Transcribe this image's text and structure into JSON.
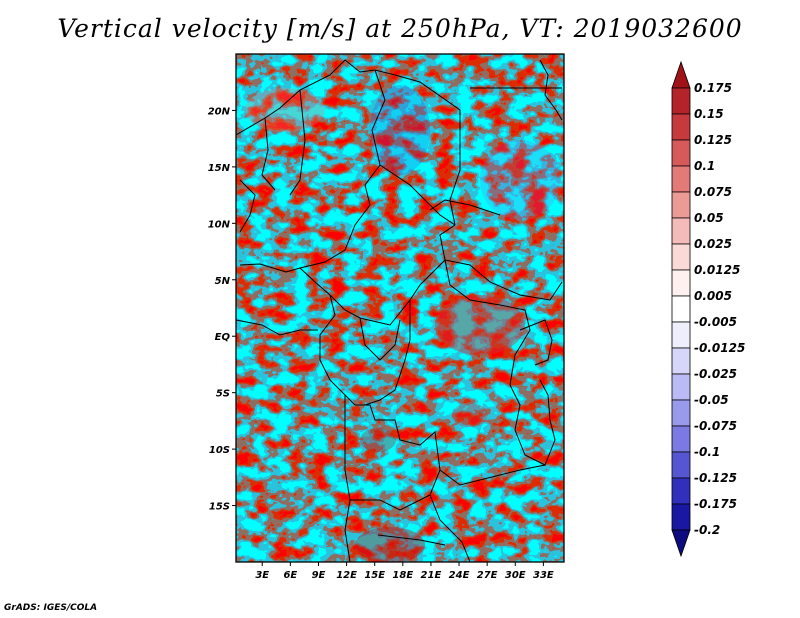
{
  "chart_data": {
    "type": "heatmap",
    "title": "Vertical velocity [m/s] at 250hPa, VT: 2019032600",
    "variable": "Vertical velocity",
    "units": "m/s",
    "level": "250hPa",
    "valid_time": "2019032600",
    "x_ticks": [
      {
        "value": 3,
        "label": "3E"
      },
      {
        "value": 6,
        "label": "6E"
      },
      {
        "value": 9,
        "label": "9E"
      },
      {
        "value": 12,
        "label": "12E"
      },
      {
        "value": 15,
        "label": "15E"
      },
      {
        "value": 18,
        "label": "18E"
      },
      {
        "value": 21,
        "label": "21E"
      },
      {
        "value": 24,
        "label": "24E"
      },
      {
        "value": 27,
        "label": "27E"
      },
      {
        "value": 30,
        "label": "30E"
      },
      {
        "value": 33,
        "label": "33E"
      }
    ],
    "y_ticks": [
      {
        "value": 20,
        "label": "20N"
      },
      {
        "value": 15,
        "label": "15N"
      },
      {
        "value": 10,
        "label": "10N"
      },
      {
        "value": 5,
        "label": "5N"
      },
      {
        "value": 0,
        "label": "EQ"
      },
      {
        "value": -5,
        "label": "5S"
      },
      {
        "value": -10,
        "label": "10S"
      },
      {
        "value": -15,
        "label": "15S"
      }
    ],
    "xlim": [
      0.2,
      35.2
    ],
    "ylim": [
      -20,
      25
    ],
    "colorbar": {
      "labels": [
        "0.175",
        "0.15",
        "0.125",
        "0.1",
        "0.075",
        "0.05",
        "0.025",
        "0.0125",
        "0.005",
        "-0.005",
        "-0.0125",
        "-0.025",
        "-0.05",
        "-0.075",
        "-0.1",
        "-0.125",
        "-0.175",
        "-0.2"
      ],
      "colors": [
        "#a01218",
        "#b4232a",
        "#c63a3e",
        "#d65a5a",
        "#e27a78",
        "#ec9a96",
        "#f4bcb8",
        "#f9dad6",
        "#fdf0ee",
        "#ffffff",
        "#eeeefd",
        "#d6d6fa",
        "#babaf4",
        "#9a9aec",
        "#7a7ae2",
        "#5656d2",
        "#3030bc",
        "#1818a2",
        "#0c0c80"
      ]
    },
    "colors": {
      "background": "#ffffff",
      "frame": "#000000",
      "coastline": "#000000"
    }
  },
  "credit": "GrADS: IGES/COLA"
}
